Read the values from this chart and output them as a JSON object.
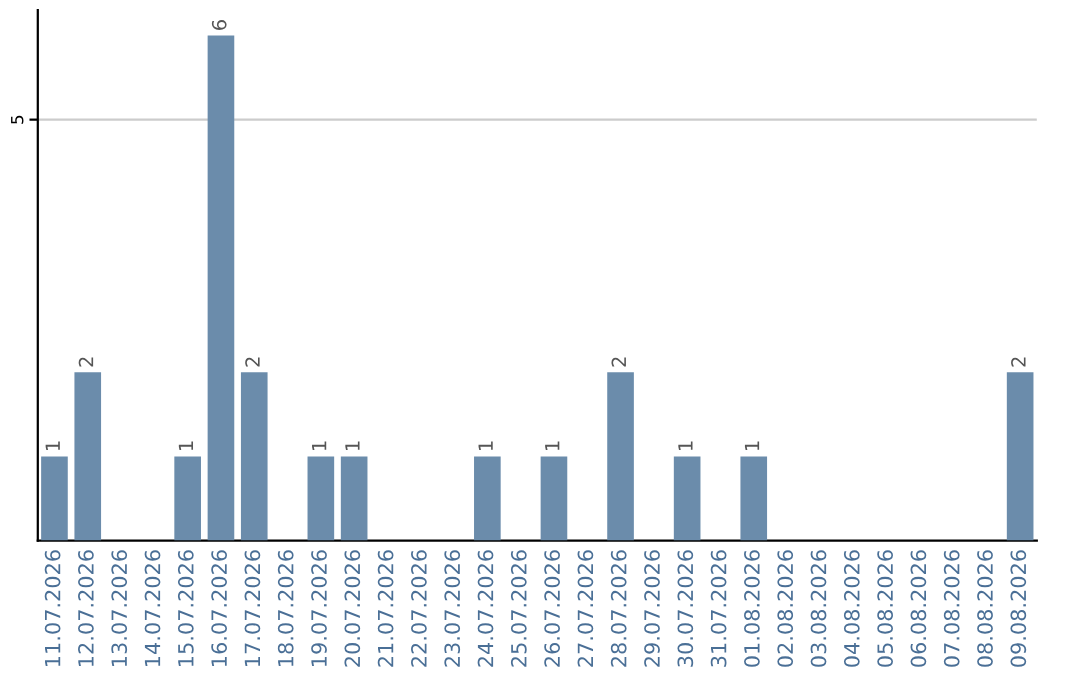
{
  "chart_data": {
    "type": "bar",
    "categories": [
      "11.07.2026",
      "12.07.2026",
      "13.07.2026",
      "14.07.2026",
      "15.07.2026",
      "16.07.2026",
      "17.07.2026",
      "18.07.2026",
      "19.07.2026",
      "20.07.2026",
      "21.07.2026",
      "22.07.2026",
      "23.07.2026",
      "24.07.2026",
      "25.07.2026",
      "26.07.2026",
      "27.07.2026",
      "28.07.2026",
      "29.07.2026",
      "30.07.2026",
      "31.07.2026",
      "01.08.2026",
      "02.08.2026",
      "03.08.2026",
      "04.08.2026",
      "05.08.2026",
      "06.08.2026",
      "07.08.2026",
      "08.08.2026",
      "09.08.2026"
    ],
    "values": [
      1,
      2,
      0,
      0,
      1,
      6,
      2,
      0,
      1,
      1,
      0,
      0,
      0,
      1,
      0,
      1,
      0,
      2,
      0,
      1,
      0,
      1,
      0,
      0,
      0,
      0,
      0,
      0,
      0,
      2
    ],
    "value_labels": [
      "1",
      "2",
      null,
      null,
      "1",
      "6",
      "2",
      null,
      "1",
      "1",
      null,
      null,
      null,
      "1",
      null,
      "1",
      null,
      "2",
      null,
      "1",
      null,
      "1",
      null,
      null,
      null,
      null,
      null,
      null,
      null,
      "2"
    ],
    "color": "#6b8cab",
    "ylim": [
      0,
      6.3
    ],
    "yticks": [
      5
    ],
    "grid": "y"
  }
}
